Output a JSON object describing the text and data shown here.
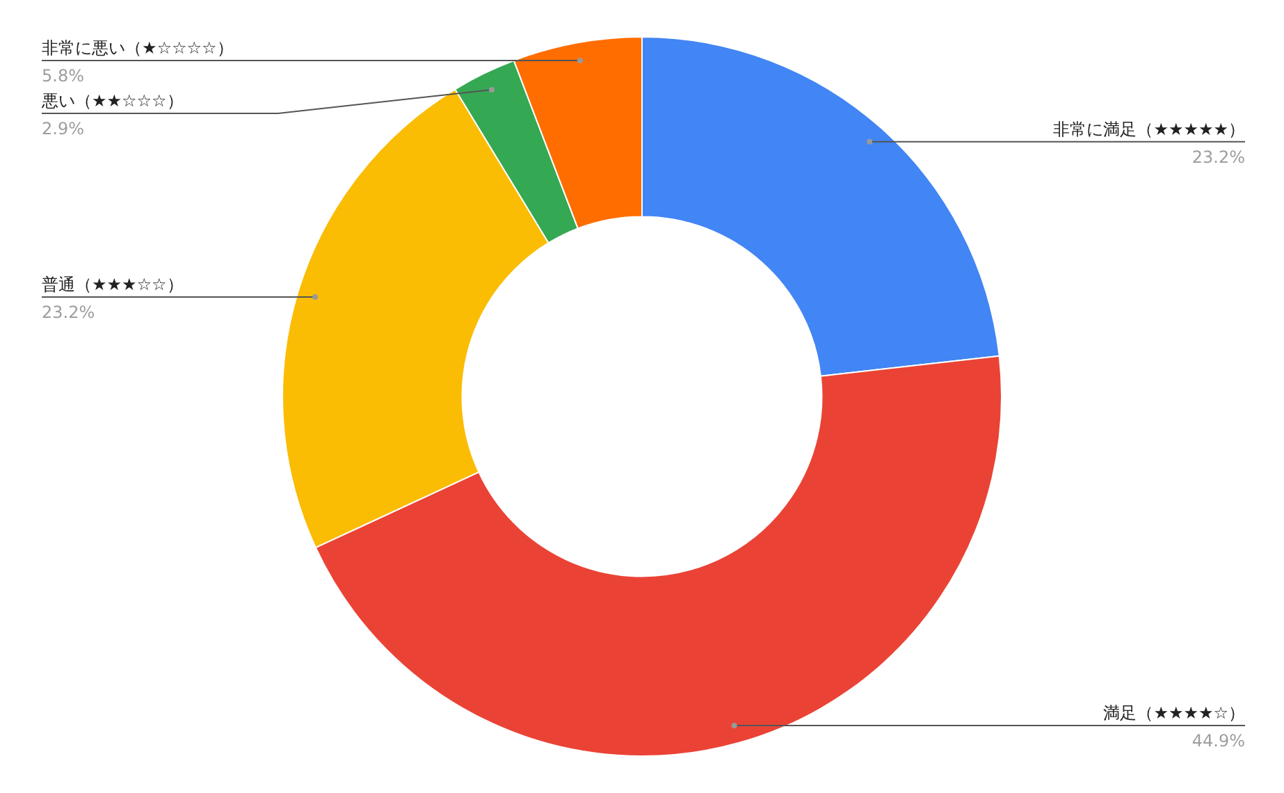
{
  "chart_data": {
    "type": "donut",
    "categories": [
      "非常に満足（★★★★★）",
      "満足（★★★★☆）",
      "普通（★★★☆☆）",
      "悪い（★★☆☆☆）",
      "非常に悪い（★☆☆☆☆）"
    ],
    "values": [
      23.2,
      44.9,
      23.2,
      2.9,
      5.8
    ],
    "colors": [
      "#4285f4",
      "#ea4335",
      "#fbbc04",
      "#34a853",
      "#ff6d01"
    ],
    "value_labels": [
      "23.2%",
      "44.9%",
      "23.2%",
      "2.9%",
      "5.8%"
    ],
    "legend": false
  }
}
